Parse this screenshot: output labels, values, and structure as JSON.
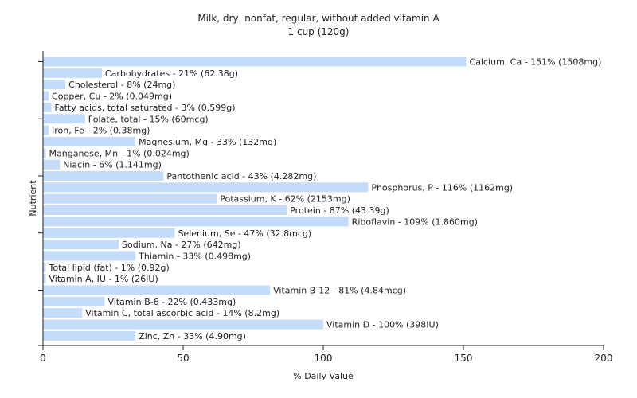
{
  "chart_data": {
    "type": "bar",
    "orientation": "horizontal",
    "title": "Milk, dry, nonfat, regular, without added vitamin A",
    "subtitle": "1 cup (120g)",
    "xlabel": "% Daily Value",
    "ylabel": "Nutrient",
    "xlim": [
      0,
      200
    ],
    "xticks": [
      0,
      50,
      100,
      150,
      200
    ],
    "grid": false,
    "bar_color": "#c4dcfa",
    "categories": [
      "Calcium, Ca",
      "Carbohydrates",
      "Cholesterol",
      "Copper, Cu",
      "Fatty acids, total saturated",
      "Folate, total",
      "Iron, Fe",
      "Magnesium, Mg",
      "Manganese, Mn",
      "Niacin",
      "Pantothenic acid",
      "Phosphorus, P",
      "Potassium, K",
      "Protein",
      "Riboflavin",
      "Selenium, Se",
      "Sodium, Na",
      "Thiamin",
      "Total lipid (fat)",
      "Vitamin A, IU",
      "Vitamin B-12",
      "Vitamin B-6",
      "Vitamin C, total ascorbic acid",
      "Vitamin D",
      "Zinc, Zn"
    ],
    "values": [
      151,
      21,
      8,
      2,
      3,
      15,
      2,
      33,
      1,
      6,
      43,
      116,
      62,
      87,
      109,
      47,
      27,
      33,
      1,
      1,
      81,
      22,
      14,
      100,
      33
    ],
    "labels": [
      "Calcium, Ca - 151% (1508mg)",
      "Carbohydrates - 21% (62.38g)",
      "Cholesterol - 8% (24mg)",
      "Copper, Cu - 2% (0.049mg)",
      "Fatty acids, total saturated - 3% (0.599g)",
      "Folate, total - 15% (60mcg)",
      "Iron, Fe - 2% (0.38mg)",
      "Magnesium, Mg - 33% (132mg)",
      "Manganese, Mn - 1% (0.024mg)",
      "Niacin - 6% (1.141mg)",
      "Pantothenic acid - 43% (4.282mg)",
      "Phosphorus, P - 116% (1162mg)",
      "Potassium, K - 62% (2153mg)",
      "Protein - 87% (43.39g)",
      "Riboflavin - 109% (1.860mg)",
      "Selenium, Se - 47% (32.8mcg)",
      "Sodium, Na - 27% (642mg)",
      "Thiamin - 33% (0.498mg)",
      "Total lipid (fat) - 1% (0.92g)",
      "Vitamin A, IU - 1% (26IU)",
      "Vitamin B-12 - 81% (4.84mcg)",
      "Vitamin B-6 - 22% (0.433mg)",
      "Vitamin C, total ascorbic acid - 14% (8.2mg)",
      "Vitamin D - 100% (398IU)",
      "Zinc, Zn - 33% (4.90mg)"
    ]
  }
}
